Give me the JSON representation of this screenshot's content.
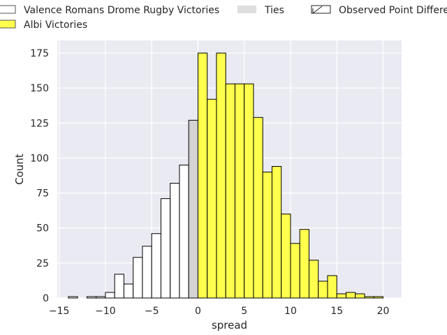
{
  "chart_data": {
    "type": "bar",
    "title": "",
    "xlabel": "spread",
    "ylabel": "Count",
    "xlim": [
      -15.2,
      22
    ],
    "ylim": [
      0,
      184
    ],
    "grid": true,
    "legend_placement": "top",
    "x_ticks": [
      {
        "value": -15,
        "label": "−15"
      },
      {
        "value": -10,
        "label": "−10"
      },
      {
        "value": -5,
        "label": "−5"
      },
      {
        "value": 0,
        "label": "0"
      },
      {
        "value": 5,
        "label": "5"
      },
      {
        "value": 10,
        "label": "10"
      },
      {
        "value": 15,
        "label": "15"
      },
      {
        "value": 20,
        "label": "20"
      }
    ],
    "y_ticks": [
      {
        "value": 0,
        "label": "0"
      },
      {
        "value": 25,
        "label": "25"
      },
      {
        "value": 50,
        "label": "50"
      },
      {
        "value": 75,
        "label": "75"
      },
      {
        "value": 100,
        "label": "100"
      },
      {
        "value": 125,
        "label": "125"
      },
      {
        "value": 150,
        "label": "150"
      },
      {
        "value": 175,
        "label": "175"
      }
    ],
    "bin_width": 1,
    "series": [
      {
        "name": "Valence Romans Drome Rugby Victories",
        "color": "#ffffff",
        "bins": [
          {
            "x": -13.5,
            "count": 1
          },
          {
            "x": -11.5,
            "count": 1
          },
          {
            "x": -10.5,
            "count": 1
          },
          {
            "x": -9.5,
            "count": 4
          },
          {
            "x": -8.5,
            "count": 17
          },
          {
            "x": -7.5,
            "count": 10
          },
          {
            "x": -6.5,
            "count": 29
          },
          {
            "x": -5.5,
            "count": 37
          },
          {
            "x": -4.5,
            "count": 46
          },
          {
            "x": -3.5,
            "count": 71
          },
          {
            "x": -2.5,
            "count": 82
          },
          {
            "x": -1.5,
            "count": 95
          }
        ]
      },
      {
        "name": "Ties",
        "color": "#d3d3d3",
        "bins": [
          {
            "x": -0.5,
            "count": 127
          }
        ]
      },
      {
        "name": "Albi Victories",
        "color": "#ffff4d",
        "bins": [
          {
            "x": 0.5,
            "count": 175
          },
          {
            "x": 1.5,
            "count": 142
          },
          {
            "x": 2.5,
            "count": 175
          },
          {
            "x": 3.5,
            "count": 153
          },
          {
            "x": 4.5,
            "count": 153
          },
          {
            "x": 5.5,
            "count": 153
          },
          {
            "x": 6.5,
            "count": 129
          },
          {
            "x": 7.5,
            "count": 90
          },
          {
            "x": 8.5,
            "count": 94
          },
          {
            "x": 9.5,
            "count": 60
          },
          {
            "x": 10.5,
            "count": 39
          },
          {
            "x": 11.5,
            "count": 49
          },
          {
            "x": 12.5,
            "count": 27
          },
          {
            "x": 13.5,
            "count": 12
          },
          {
            "x": 14.5,
            "count": 16
          },
          {
            "x": 15.5,
            "count": 3
          },
          {
            "x": 16.5,
            "count": 4
          },
          {
            "x": 17.5,
            "count": 3
          },
          {
            "x": 18.5,
            "count": 1
          },
          {
            "x": 19.5,
            "count": 1
          }
        ]
      }
    ],
    "legend": [
      {
        "label": "Valence Romans Drome Rugby Victories",
        "swatch": "outline",
        "color": "#ffffff"
      },
      {
        "label": "Albi Victories",
        "swatch": "filled",
        "color": "#ffff4d"
      },
      {
        "label": "Ties",
        "swatch": "filled",
        "color": "#dedede"
      },
      {
        "label": "Observed Point Difference",
        "swatch": "arrow",
        "color": "#ffffff"
      }
    ],
    "colors": {
      "plot_background": "#eaeaf2",
      "grid": "#ffffff",
      "bar_edge": "#000000",
      "text": "#262626"
    }
  }
}
